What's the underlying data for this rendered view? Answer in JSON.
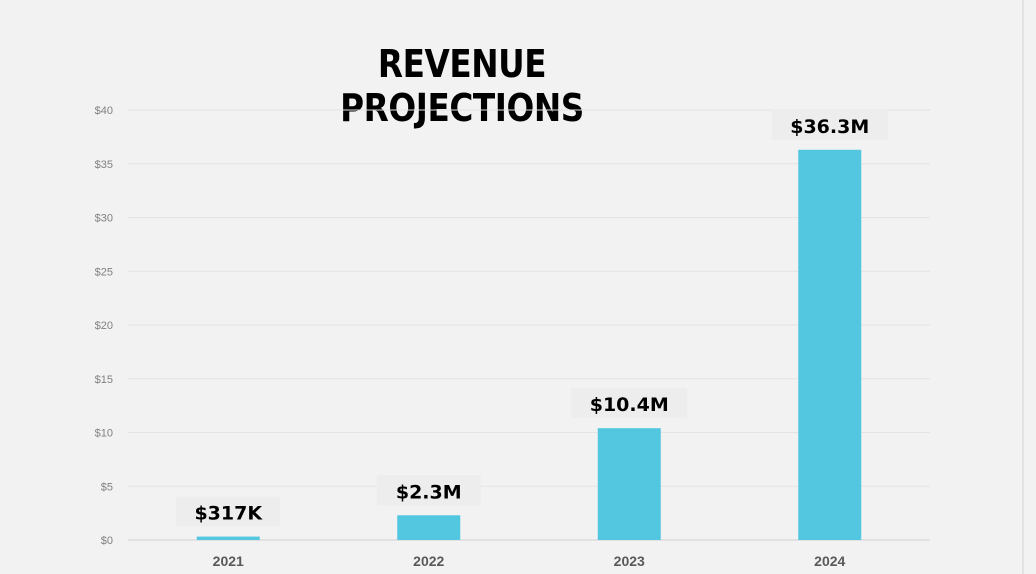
{
  "chart_data": {
    "type": "bar",
    "title": "REVENUE PROJECTIONS",
    "categories": [
      "2021",
      "2022",
      "2023",
      "2024"
    ],
    "values": [
      0.317,
      2.3,
      10.4,
      36.3
    ],
    "data_labels": [
      "$317K",
      "$2.3M",
      "$10.4M",
      "$36.3M"
    ],
    "y_ticks": [
      "$0",
      "$5",
      "$10",
      "$15",
      "$20",
      "$25",
      "$30",
      "$35",
      "$40"
    ],
    "y_tick_values": [
      0,
      5,
      10,
      15,
      20,
      25,
      30,
      35,
      40
    ],
    "ylim": [
      0,
      40
    ],
    "xlabel": "",
    "ylabel": "",
    "grid": true,
    "bar_color": "#53c6e0",
    "legend": "none"
  }
}
